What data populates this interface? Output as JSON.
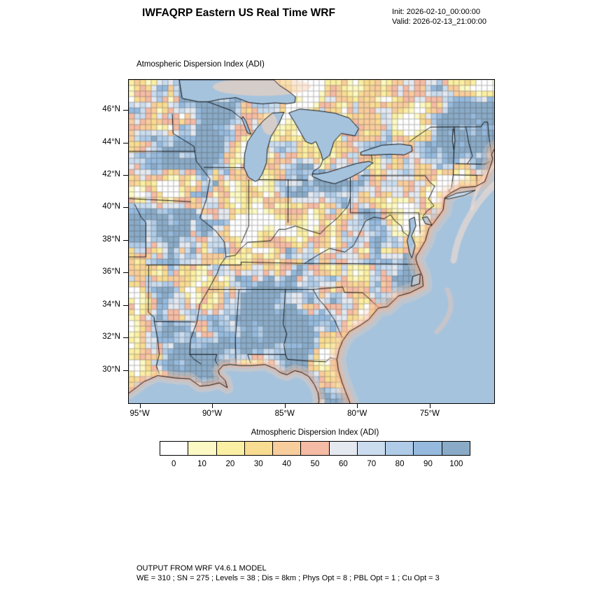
{
  "header": {
    "title": "IWFAQRP Eastern US Real Time WRF",
    "init": "Init: 2026-02-10_00:00:00",
    "valid": "Valid: 2026-02-13_21:00:00"
  },
  "chart_data": {
    "type": "heatmap",
    "title": "Atmospheric Dispersion Index   (ADI)",
    "variable": "Atmospheric Dispersion Index (ADI)",
    "region": "Eastern US",
    "model": "WRF",
    "x_ticks": [
      {
        "value": 95,
        "label": "95°W"
      },
      {
        "value": 90,
        "label": "90°W"
      },
      {
        "value": 85,
        "label": "85°W"
      },
      {
        "value": 80,
        "label": "80°W"
      },
      {
        "value": 75,
        "label": "75°W"
      }
    ],
    "y_ticks": [
      {
        "value": 46,
        "label": "46°N"
      },
      {
        "value": 44,
        "label": "44°N"
      },
      {
        "value": 42,
        "label": "42°N"
      },
      {
        "value": 40,
        "label": "40°N"
      },
      {
        "value": 38,
        "label": "38°N"
      },
      {
        "value": 36,
        "label": "36°N"
      },
      {
        "value": 34,
        "label": "34°N"
      },
      {
        "value": 32,
        "label": "32°N"
      },
      {
        "value": 30,
        "label": "30°N"
      }
    ],
    "map_extent": {
      "lon_w": [
        95.8,
        70.6
      ],
      "lat_n": [
        28.0,
        47.9
      ]
    },
    "colorbar": {
      "title": "Atmospheric Dispersion Index  (ADI)",
      "levels": [
        0,
        10,
        20,
        30,
        40,
        50,
        60,
        70,
        80,
        90,
        100
      ],
      "colors": [
        "#ffffff",
        "#fdf9c4",
        "#fbefa3",
        "#f8dc92",
        "#f8cd9c",
        "#f5bba4",
        "#e4e9f0",
        "#cadcee",
        "#afcbe7",
        "#95bade",
        "#8aabc7"
      ]
    },
    "ocean_color": "#a6c3de"
  },
  "footer": {
    "line1": "OUTPUT FROM WRF V4.6.1 MODEL",
    "line2": "WE = 310 ; SN = 275 ; Levels = 38 ; Dis = 8km ; Phys Opt = 8 ; PBL Opt = 1 ; Cu Opt = 3"
  }
}
